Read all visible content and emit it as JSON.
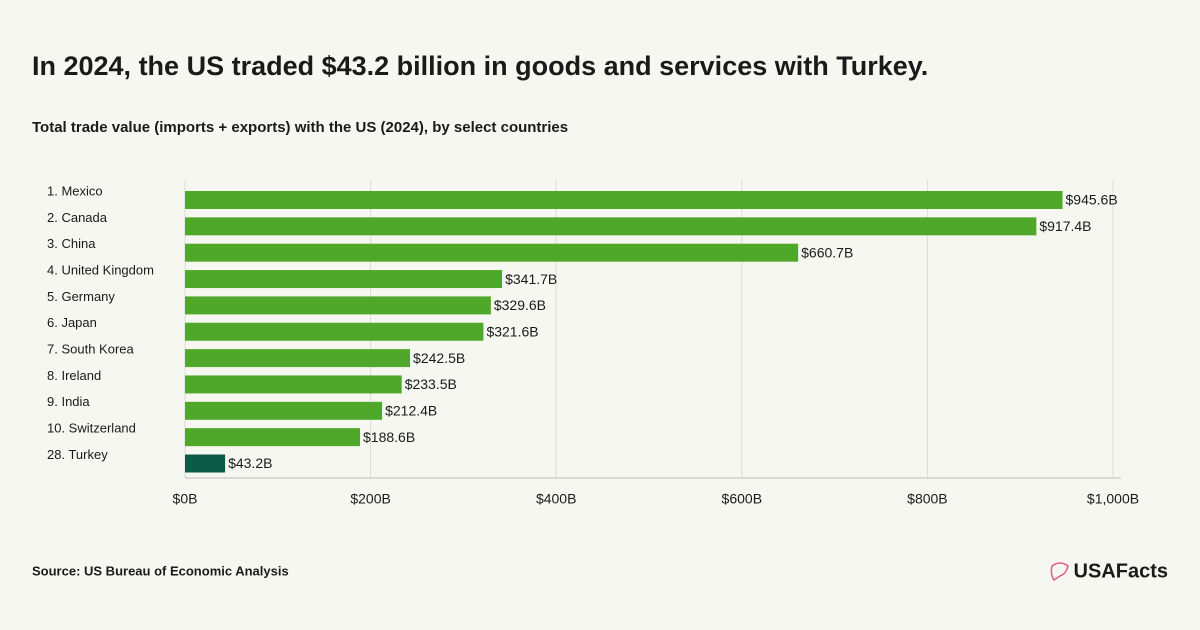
{
  "chart_data": {
    "type": "hbar",
    "title": "In 2024, the US traded $43.2 billion in goods and services with Turkey.",
    "subtitle": "Total trade value (imports + exports) with the US (2024), by select countries",
    "categories": [
      "1. Mexico",
      "2. Canada",
      "3. China",
      "4. United Kingdom",
      "5. Germany",
      "6. Japan",
      "7. South Korea",
      "8. Ireland",
      "9. India",
      "10. Switzerland",
      "28. Turkey"
    ],
    "values": [
      945.6,
      917.4,
      660.7,
      341.7,
      329.6,
      321.6,
      242.5,
      233.5,
      212.4,
      188.6,
      43.2
    ],
    "value_labels": [
      "$945.6B",
      "$917.4B",
      "$660.7B",
      "$341.7B",
      "$329.6B",
      "$321.6B",
      "$242.5B",
      "$233.5B",
      "$212.4B",
      "$188.6B",
      "$43.2B"
    ],
    "colors": [
      "#4fa82a",
      "#4fa82a",
      "#4fa82a",
      "#4fa82a",
      "#4fa82a",
      "#4fa82a",
      "#4fa82a",
      "#4fa82a",
      "#4fa82a",
      "#4fa82a",
      "#0d5a48"
    ],
    "xlim": [
      0,
      1000
    ],
    "xticks": [
      {
        "value": 0,
        "label": "$0B"
      },
      {
        "value": 200,
        "label": "$200B"
      },
      {
        "value": 400,
        "label": "$400B"
      },
      {
        "value": 600,
        "label": "$600B"
      },
      {
        "value": 800,
        "label": "$800B"
      },
      {
        "value": 1000,
        "label": "$1,000B"
      }
    ],
    "grid": true,
    "source": "Source: US Bureau of Economic Analysis",
    "logo": "USAFacts"
  }
}
